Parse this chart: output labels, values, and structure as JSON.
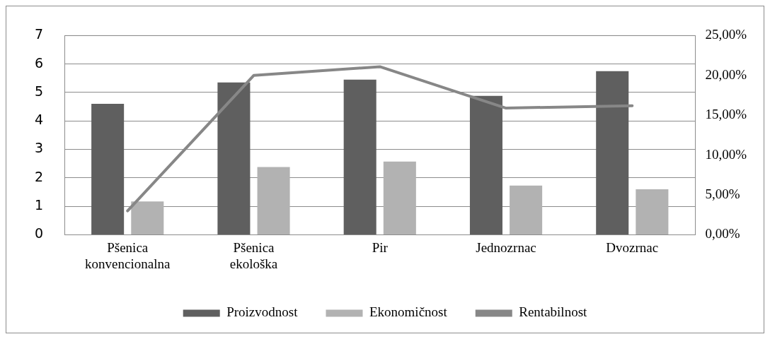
{
  "chart_data": {
    "type": "bar",
    "categories": [
      "Pšenica konvencionalna",
      "Pšenica ekološka",
      "Pir",
      "Jednozrnac",
      "Dvozrnac"
    ],
    "series": [
      {
        "name": "Proizvodnost",
        "color": "#5f5f5f",
        "values": [
          4.6,
          5.35,
          5.45,
          4.88,
          5.75
        ]
      },
      {
        "name": "Ekonomičnost",
        "color": "#b2b2b2",
        "values": [
          1.17,
          2.38,
          2.57,
          1.73,
          1.6
        ]
      },
      {
        "name": "Rentabilnost",
        "type": "line",
        "axis": "y2",
        "color": "#878787",
        "values": [
          3.0,
          20.0,
          21.1,
          15.9,
          16.2
        ]
      }
    ],
    "ylim": [
      0,
      7
    ],
    "yticks": [
      0,
      1,
      2,
      3,
      4,
      5,
      6,
      7
    ],
    "y2lim": [
      0,
      25
    ],
    "y2ticks": [
      {
        "value": 0,
        "label": "0,00%"
      },
      {
        "value": 5,
        "label": "5,00%"
      },
      {
        "value": 10,
        "label": "10,00%"
      },
      {
        "value": 15,
        "label": "15,00%"
      },
      {
        "value": 20,
        "label": "20,00%"
      },
      {
        "value": 25,
        "label": "25,00%"
      }
    ],
    "grid": "y",
    "legend": "bottom",
    "marker": "none",
    "line_style": "solid"
  }
}
